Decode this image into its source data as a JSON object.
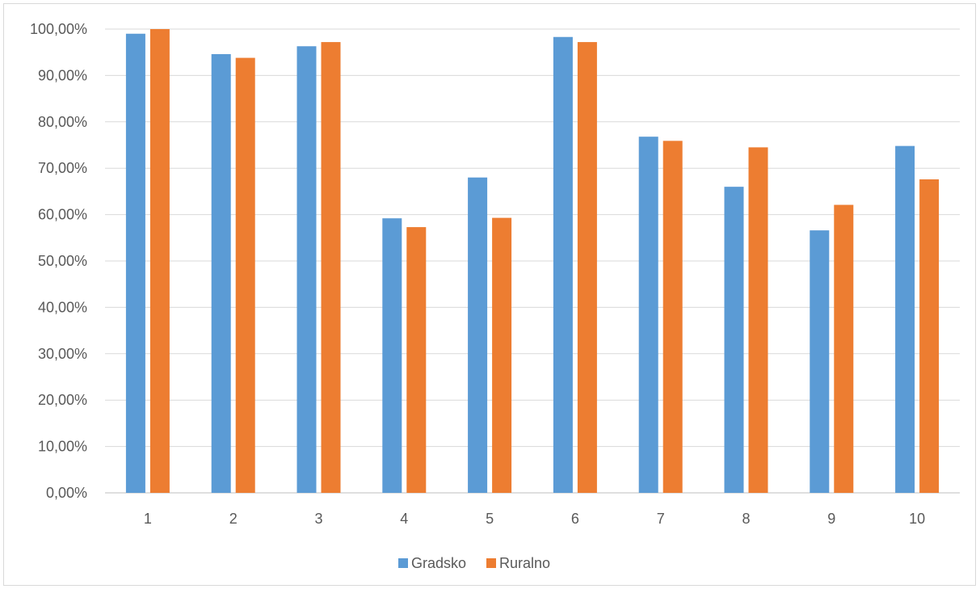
{
  "chart_data": {
    "type": "bar",
    "categories": [
      "1",
      "2",
      "3",
      "4",
      "5",
      "6",
      "7",
      "8",
      "9",
      "10"
    ],
    "series": [
      {
        "name": "Gradsko",
        "color": "#5B9BD5",
        "values": [
          99.0,
          94.6,
          96.3,
          59.2,
          68.0,
          98.3,
          76.8,
          66.0,
          56.6,
          74.8
        ]
      },
      {
        "name": "Ruralno",
        "color": "#ED7D31",
        "values": [
          100.0,
          93.8,
          97.2,
          57.3,
          59.3,
          97.2,
          75.9,
          74.5,
          62.1,
          67.6
        ]
      }
    ],
    "yticks": [
      "0,00%",
      "10,00%",
      "20,00%",
      "30,00%",
      "40,00%",
      "50,00%",
      "60,00%",
      "70,00%",
      "80,00%",
      "90,00%",
      "100,00%"
    ],
    "ylim": [
      0,
      100
    ],
    "grid": true,
    "legend_position": "bottom",
    "title": "",
    "xlabel": "",
    "ylabel": ""
  }
}
